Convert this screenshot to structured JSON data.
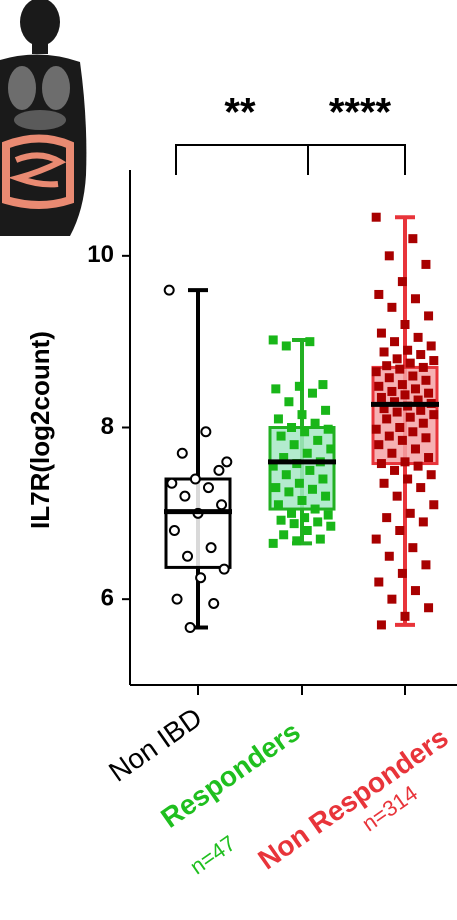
{
  "chart_data": {
    "type": "box",
    "y_label": "IL7R(log2count)",
    "categories": [
      "Non IBD",
      "Responders",
      "Non Responders"
    ],
    "n_labels": [
      null,
      "n=47",
      "n=314"
    ],
    "ylim": [
      5,
      11
    ],
    "yticks": [
      6,
      8,
      10
    ],
    "comparisons": [
      {
        "label": "**"
      },
      {
        "label": "****"
      }
    ],
    "boxes": [
      {
        "color": "#000000",
        "fill": "#ffffff",
        "point_color": "#ffffff",
        "point_shape": "circle",
        "label_color": "#000000",
        "min": 5.67,
        "q1": 6.37,
        "median": 7.02,
        "q3": 7.4,
        "max": 9.6,
        "points": [
          9.6,
          7.95,
          7.7,
          7.5,
          7.4,
          7.35,
          7.3,
          7.2,
          7.1,
          7.0,
          6.8,
          6.6,
          6.5,
          6.35,
          6.25,
          6.0,
          5.95,
          5.67,
          7.6
        ]
      },
      {
        "color": "#22b022",
        "fill": "#a6e8c6",
        "point_color": "#19b619",
        "point_shape": "square",
        "label_color": "#1fbf1f",
        "min": 6.65,
        "q1": 7.05,
        "median": 7.6,
        "q3": 8.0,
        "max": 9.02,
        "points": [
          9.02,
          9.0,
          8.95,
          8.5,
          8.48,
          8.45,
          8.4,
          8.3,
          8.2,
          8.15,
          8.1,
          8.05,
          8.0,
          7.98,
          7.95,
          7.9,
          7.85,
          7.8,
          7.75,
          7.7,
          7.65,
          7.6,
          7.58,
          7.55,
          7.5,
          7.45,
          7.4,
          7.35,
          7.3,
          7.28,
          7.25,
          7.2,
          7.15,
          7.1,
          7.05,
          7.0,
          6.98,
          6.95,
          6.92,
          6.9,
          6.88,
          6.85,
          6.8,
          6.75,
          6.7,
          6.68,
          6.65
        ]
      },
      {
        "color": "#e8343a",
        "fill": "#f5a3a6",
        "point_color": "#a80000",
        "point_shape": "square",
        "label_color": "#e8343a",
        "min": 5.7,
        "q1": 7.58,
        "median": 8.27,
        "q3": 8.7,
        "max": 10.45,
        "points": [
          10.45,
          10.2,
          10.0,
          9.9,
          9.7,
          9.55,
          9.5,
          9.4,
          9.3,
          9.2,
          9.1,
          9.05,
          9.0,
          8.95,
          8.9,
          8.88,
          8.85,
          8.8,
          8.78,
          8.75,
          8.72,
          8.7,
          8.68,
          8.65,
          8.6,
          8.58,
          8.55,
          8.5,
          8.48,
          8.45,
          8.42,
          8.4,
          8.38,
          8.35,
          8.32,
          8.3,
          8.28,
          8.25,
          8.22,
          8.2,
          8.18,
          8.15,
          8.12,
          8.1,
          8.05,
          8.0,
          7.98,
          7.95,
          7.9,
          7.88,
          7.85,
          7.8,
          7.75,
          7.7,
          7.65,
          7.6,
          7.58,
          7.55,
          7.5,
          7.45,
          7.4,
          7.35,
          7.3,
          7.2,
          7.1,
          7.0,
          6.95,
          6.9,
          6.8,
          6.7,
          6.6,
          6.5,
          6.4,
          6.3,
          6.2,
          6.1,
          6.0,
          5.9,
          5.8,
          5.7
        ]
      }
    ]
  }
}
